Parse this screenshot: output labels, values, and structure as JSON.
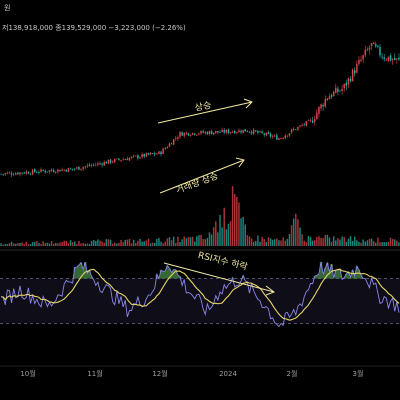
{
  "header": {
    "name_partial": "원",
    "ohlc_line": "저138,918,000  종139,529,000  −3,223,000 (−2.26%)"
  },
  "annotations": {
    "price_rise": "상승",
    "volume_rise": "거래량 상승",
    "rsi_fall": "RSI지수 하락"
  },
  "colors": {
    "background": "#000000",
    "up": "#e0464e",
    "down": "#1fb3a6",
    "arrow": "#f2e9a0",
    "rsi_line": "#8a86e8",
    "rsi_ma": "#e6d66a",
    "rsi_overbought_fill": "#3f7a3f",
    "rsi_band": "#7a6ac0"
  },
  "chart_data": {
    "type": "candlestick",
    "x_tick_labels": [
      "10월",
      "11월",
      "12월",
      "2024",
      "2월",
      "3월"
    ],
    "price_trend": [
      [
        0,
        30
      ],
      [
        0.18,
        33
      ],
      [
        0.28,
        38
      ],
      [
        0.4,
        43
      ],
      [
        0.45,
        55
      ],
      [
        0.55,
        56
      ],
      [
        0.62,
        57
      ],
      [
        0.67,
        54
      ],
      [
        0.7,
        52
      ],
      [
        0.74,
        58
      ],
      [
        0.78,
        63
      ],
      [
        0.82,
        78
      ],
      [
        0.86,
        83
      ],
      [
        0.89,
        95
      ],
      [
        0.93,
        110
      ],
      [
        0.96,
        103
      ],
      [
        1.0,
        100
      ]
    ],
    "volume_profile": [
      [
        0,
        1
      ],
      [
        0.4,
        2
      ],
      [
        0.52,
        3
      ],
      [
        0.56,
        9
      ],
      [
        0.58,
        15
      ],
      [
        0.6,
        10
      ],
      [
        0.62,
        3
      ],
      [
        0.72,
        2
      ],
      [
        0.74,
        8
      ],
      [
        0.76,
        3
      ],
      [
        1.0,
        2
      ]
    ],
    "rsi_levels": {
      "upper": 70,
      "lower": 30
    }
  }
}
